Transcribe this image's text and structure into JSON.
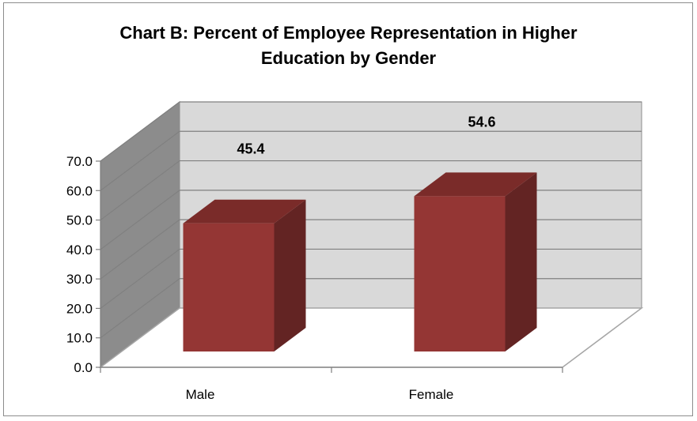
{
  "chart_data": {
    "type": "bar",
    "style": "3d-column",
    "title_lines": [
      "Chart B: Percent of Employee Representation in Higher",
      "Education by Gender"
    ],
    "categories": [
      "Male",
      "Female"
    ],
    "values": [
      45.4,
      54.6
    ],
    "data_labels": [
      "45.4",
      "54.6"
    ],
    "ylim": [
      0,
      70
    ],
    "yticks": [
      "0.0",
      "10.0",
      "20.0",
      "30.0",
      "40.0",
      "50.0",
      "60.0",
      "70.0"
    ],
    "grid": true,
    "legend": "none",
    "colors": {
      "bar_front": "#943634",
      "bar_side": "#632423",
      "bar_top": "#7a2b29",
      "back_wall": "#d9d9d9",
      "side_wall": "#8c8c8c",
      "gridline": "#808080"
    }
  }
}
